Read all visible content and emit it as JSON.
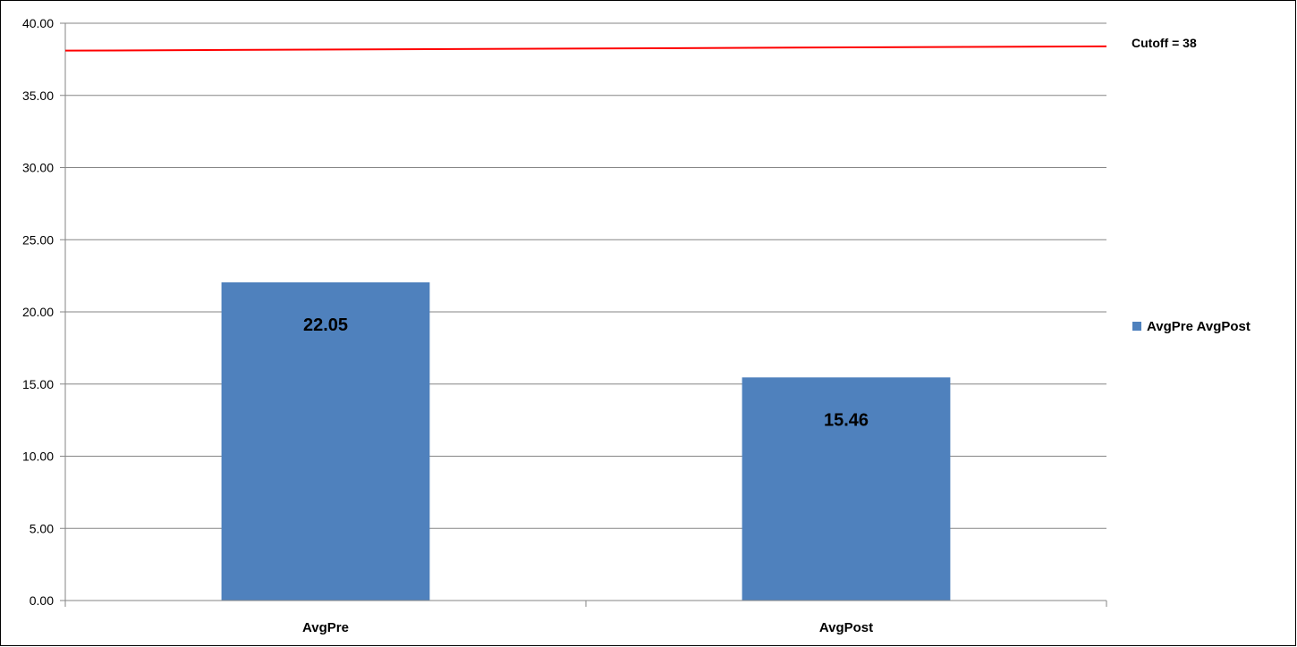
{
  "chart_data": {
    "type": "bar",
    "title": "",
    "xlabel": "",
    "ylabel": "",
    "categories": [
      "AvgPre",
      "AvgPost"
    ],
    "series": [
      {
        "name": "AvgPre AvgPost",
        "values": [
          22.05,
          15.46
        ],
        "color": "#4F81BD"
      }
    ],
    "data_labels": [
      "22.05",
      "15.46"
    ],
    "ylim": [
      0,
      40
    ],
    "y_ticks": [
      "0.00",
      "5.00",
      "10.00",
      "15.00",
      "20.00",
      "25.00",
      "30.00",
      "35.00",
      "40.00"
    ],
    "grid": true,
    "legend_position": "right",
    "reference_line": {
      "label": "Cutoff = 38",
      "value_start": 38.1,
      "value_end": 38.4,
      "color": "#FF0000"
    }
  }
}
